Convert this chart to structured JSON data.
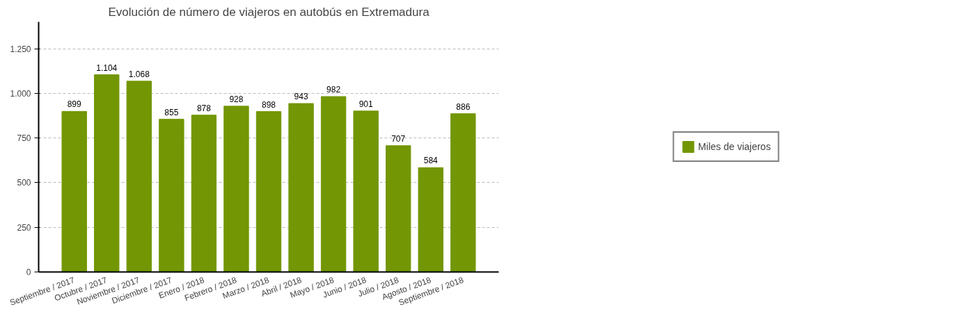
{
  "chart_data": {
    "type": "bar",
    "title": "Evolución de número de viajeros en autobús en Extremadura",
    "categories": [
      "Septiembre / 2017",
      "Octubre / 2017",
      "Noviembre / 2017",
      "Diciembre / 2017",
      "Enero / 2018",
      "Febrero / 2018",
      "Marzo / 2018",
      "Abril / 2018",
      "Mayo / 2018",
      "Junio / 2018",
      "Julio / 2018",
      "Agosto / 2018",
      "Septiembre / 2018"
    ],
    "series": [
      {
        "name": "Miles de viajeros",
        "color": "#739604",
        "values": [
          899,
          1104,
          1068,
          855,
          878,
          928,
          898,
          943,
          982,
          901,
          707,
          584,
          886
        ],
        "value_labels": [
          "899",
          "1.104",
          "1.068",
          "855",
          "878",
          "928",
          "898",
          "943",
          "982",
          "901",
          "707",
          "584",
          "886"
        ]
      }
    ],
    "ylim": [
      0,
      1400
    ],
    "yticks": [
      0,
      {
        "value": 250,
        "label": "250"
      },
      {
        "value": 500,
        "label": "500"
      },
      {
        "value": 750,
        "label": "750"
      },
      {
        "value": 1000,
        "label": "1.000"
      },
      {
        "value": 1250,
        "label": "1.250"
      }
    ],
    "grid": "y",
    "legend": "right"
  }
}
